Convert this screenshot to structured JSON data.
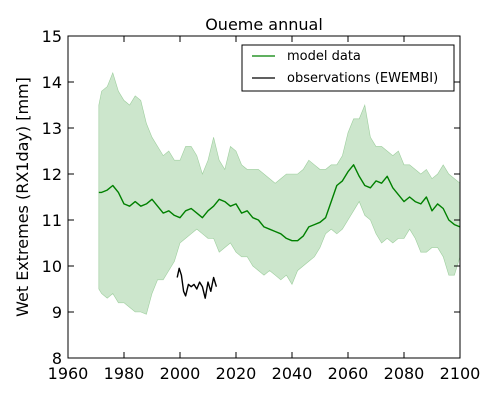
{
  "chart_data": {
    "type": "line",
    "title": "Oueme annual",
    "xlabel": "",
    "ylabel": "Wet Extremes (RX1day) [mm]",
    "xlim": [
      1960,
      2100
    ],
    "ylim": [
      8,
      15
    ],
    "x_ticks": [
      "1960",
      "1980",
      "2000",
      "2020",
      "2040",
      "2060",
      "2080",
      "2100"
    ],
    "y_ticks": [
      "8",
      "9",
      "10",
      "11",
      "12",
      "13",
      "14",
      "15"
    ],
    "grid": false,
    "legend_position": "top-right",
    "legend": [
      {
        "label": "model data",
        "color": "#008000"
      },
      {
        "label": "observations (EWEMBI)",
        "color": "#000000"
      }
    ],
    "band": {
      "x": [
        1971,
        1972,
        1974,
        1976,
        1978,
        1980,
        1982,
        1984,
        1986,
        1988,
        1990,
        1992,
        1994,
        1996,
        1998,
        2000,
        2002,
        2004,
        2006,
        2008,
        2010,
        2012,
        2014,
        2016,
        2018,
        2020,
        2022,
        2024,
        2026,
        2028,
        2030,
        2032,
        2034,
        2036,
        2038,
        2040,
        2042,
        2044,
        2046,
        2048,
        2050,
        2052,
        2054,
        2056,
        2058,
        2060,
        2062,
        2064,
        2066,
        2068,
        2070,
        2072,
        2074,
        2076,
        2078,
        2080,
        2082,
        2084,
        2086,
        2088,
        2090,
        2092,
        2094,
        2096,
        2098,
        2100
      ],
      "upper": [
        13.5,
        13.8,
        13.9,
        14.2,
        13.8,
        13.6,
        13.5,
        13.7,
        13.6,
        13.1,
        12.8,
        12.6,
        12.4,
        12.5,
        12.3,
        12.3,
        12.6,
        12.6,
        12.4,
        12.0,
        12.3,
        12.8,
        12.3,
        12.1,
        12.6,
        12.5,
        12.2,
        12.1,
        12.1,
        12.1,
        12.0,
        11.9,
        11.8,
        11.9,
        12.0,
        12.0,
        12.0,
        12.1,
        12.3,
        12.2,
        12.1,
        12.1,
        12.2,
        12.2,
        12.4,
        12.9,
        13.2,
        13.2,
        13.5,
        12.8,
        12.6,
        12.6,
        12.5,
        12.4,
        12.5,
        12.2,
        12.2,
        12.1,
        12.0,
        12.1,
        11.9,
        12.0,
        12.2,
        12.0,
        11.9,
        11.8
      ],
      "lower": [
        9.5,
        9.4,
        9.3,
        9.4,
        9.2,
        9.2,
        9.1,
        9.0,
        9.0,
        8.95,
        9.4,
        9.7,
        9.7,
        9.9,
        10.1,
        10.5,
        10.6,
        10.7,
        10.8,
        10.7,
        10.6,
        10.6,
        10.3,
        10.4,
        10.5,
        10.3,
        10.2,
        10.2,
        10.0,
        9.9,
        9.8,
        9.9,
        9.8,
        9.7,
        9.8,
        9.6,
        9.9,
        10.0,
        10.1,
        10.2,
        10.4,
        10.7,
        10.8,
        10.7,
        10.8,
        11.0,
        11.2,
        11.4,
        11.1,
        11.0,
        10.7,
        10.5,
        10.6,
        10.5,
        10.6,
        10.6,
        10.8,
        10.6,
        10.3,
        10.3,
        10.4,
        10.4,
        10.2,
        9.8,
        9.8,
        10.2
      ]
    },
    "series": [
      {
        "name": "model data",
        "color": "#008000",
        "x": [
          1971,
          1972,
          1974,
          1976,
          1978,
          1980,
          1982,
          1984,
          1986,
          1988,
          1990,
          1992,
          1994,
          1996,
          1998,
          2000,
          2002,
          2004,
          2006,
          2008,
          2010,
          2012,
          2014,
          2016,
          2018,
          2020,
          2022,
          2024,
          2026,
          2028,
          2030,
          2032,
          2034,
          2036,
          2038,
          2040,
          2042,
          2044,
          2046,
          2048,
          2050,
          2052,
          2054,
          2056,
          2058,
          2060,
          2062,
          2064,
          2066,
          2068,
          2070,
          2072,
          2074,
          2076,
          2078,
          2080,
          2082,
          2084,
          2086,
          2088,
          2090,
          2092,
          2094,
          2096,
          2098,
          2100
        ],
        "y": [
          11.6,
          11.6,
          11.65,
          11.75,
          11.6,
          11.35,
          11.3,
          11.4,
          11.3,
          11.35,
          11.45,
          11.3,
          11.15,
          11.2,
          11.1,
          11.05,
          11.2,
          11.25,
          11.15,
          11.05,
          11.2,
          11.3,
          11.45,
          11.4,
          11.3,
          11.35,
          11.15,
          11.2,
          11.05,
          11.0,
          10.85,
          10.8,
          10.75,
          10.7,
          10.6,
          10.55,
          10.55,
          10.65,
          10.85,
          10.9,
          10.95,
          11.05,
          11.4,
          11.75,
          11.85,
          12.05,
          12.2,
          11.95,
          11.75,
          11.7,
          11.85,
          11.8,
          11.95,
          11.7,
          11.55,
          11.4,
          11.5,
          11.4,
          11.35,
          11.5,
          11.2,
          11.35,
          11.25,
          11.0,
          10.9,
          10.85
        ]
      },
      {
        "name": "observations (EWEMBI)",
        "color": "#000000",
        "x": [
          1999,
          1999.7,
          2000.5,
          2001.3,
          2002,
          2003,
          2004,
          2005,
          2006,
          2007,
          2008,
          2009,
          2010,
          2011,
          2012,
          2013
        ],
        "y": [
          9.75,
          9.95,
          9.8,
          9.45,
          9.35,
          9.6,
          9.55,
          9.6,
          9.5,
          9.65,
          9.55,
          9.3,
          9.65,
          9.45,
          9.75,
          9.55
        ]
      }
    ]
  }
}
